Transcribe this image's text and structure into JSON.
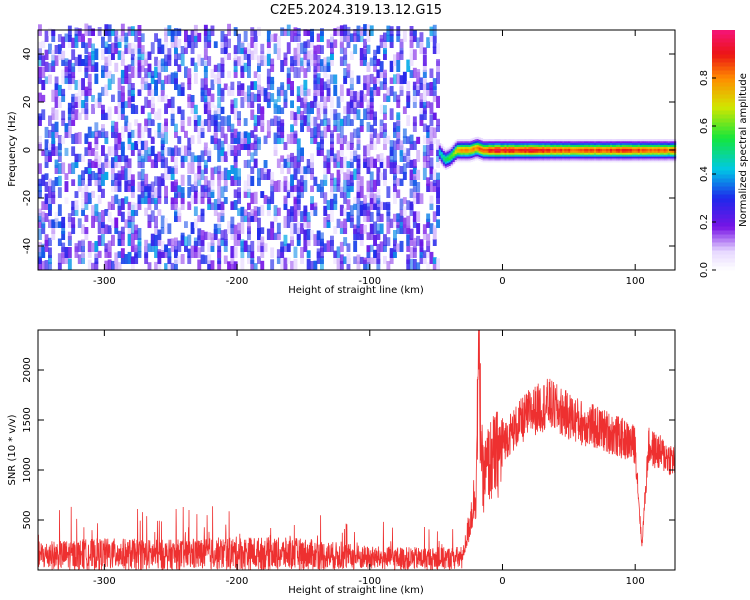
{
  "title": "C2E5.2024.319.13.12.G15",
  "chart_data": [
    {
      "type": "heatmap",
      "xlabel": "Height of straight line (km)",
      "ylabel": "Frequency (Hz)",
      "xlim": [
        -350,
        130
      ],
      "ylim": [
        -50,
        50
      ],
      "xticks": [
        -300,
        -200,
        -100,
        0,
        100
      ],
      "xtick_labels": [
        "-300",
        "-200",
        "-100",
        "0",
        "100"
      ],
      "yticks": [
        -40,
        -20,
        0,
        20,
        40
      ],
      "ytick_labels": [
        "-40",
        "-20",
        "0",
        "20",
        "40"
      ],
      "noise_region_x": [
        -350,
        -48
      ],
      "signal_band": {
        "x": [
          -48,
          -44,
          -40,
          -35,
          -30,
          -25,
          -20,
          -15,
          -10,
          0,
          10,
          20,
          40,
          60,
          80,
          100,
          110,
          120,
          130
        ],
        "center_hz": [
          -1,
          -4,
          -3,
          0,
          0,
          0,
          1,
          0,
          0,
          0,
          0,
          0,
          0,
          0,
          0,
          0,
          0,
          0,
          0
        ],
        "peak_amplitude": [
          0.45,
          0.55,
          0.6,
          0.75,
          0.85,
          0.8,
          0.85,
          0.9,
          0.95,
          0.95,
          0.95,
          0.95,
          0.9,
          0.88,
          0.9,
          0.9,
          0.88,
          0.85,
          0.85
        ]
      },
      "colorbar": {
        "label": "Normalized spectral amplitude",
        "range": [
          0,
          1
        ],
        "ticks": [
          0.0,
          0.2,
          0.4,
          0.6,
          0.8
        ],
        "tick_labels": [
          "0.0",
          "0.2",
          "0.4",
          "0.6",
          "0.8"
        ]
      }
    },
    {
      "type": "line",
      "xlabel": "Height of straight line (km)",
      "ylabel": "SNR (10 * v/v)",
      "xlim": [
        -350,
        130
      ],
      "ylim": [
        0,
        2400
      ],
      "xticks": [
        -300,
        -200,
        -100,
        0,
        100
      ],
      "xtick_labels": [
        "-300",
        "-200",
        "-100",
        "0",
        "100"
      ],
      "yticks": [
        500,
        1000,
        1500,
        2000
      ],
      "ytick_labels": [
        "500",
        "1000",
        "1500",
        "2000"
      ],
      "color": "#ee3030",
      "series": [
        {
          "x": [
            -350,
            -300,
            -250,
            -200,
            -150,
            -100,
            -50,
            -30,
            -25,
            -20,
            -18,
            -15,
            -10,
            0,
            10,
            20,
            30,
            35,
            40,
            50,
            60,
            80,
            100,
            105,
            110,
            120,
            130
          ],
          "values": [
            180,
            200,
            190,
            210,
            200,
            150,
            140,
            150,
            500,
            900,
            2400,
            1000,
            1200,
            1350,
            1500,
            1650,
            1720,
            1750,
            1700,
            1620,
            1550,
            1450,
            1320,
            250,
            1300,
            1220,
            1150
          ]
        }
      ]
    }
  ]
}
